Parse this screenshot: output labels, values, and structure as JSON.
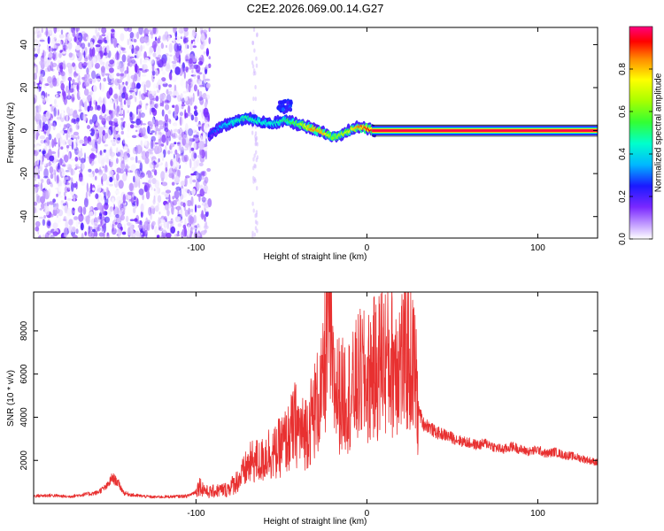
{
  "figure_title": "C2E2.2026.069.00.14.G27",
  "chart_data": [
    {
      "type": "heatmap",
      "title": "C2E2.2026.069.00.14.G27",
      "xlabel": "Height of straight line (km)",
      "ylabel": "Frequency (Hz)",
      "xlim": [
        -195,
        135
      ],
      "ylim": [
        -50,
        48
      ],
      "xticks": [
        -100,
        0,
        100
      ],
      "xtick_labels": [
        "-100",
        "0",
        "100"
      ],
      "yticks": [
        -40,
        -20,
        0,
        20,
        40
      ],
      "ytick_labels": [
        "-40",
        "-20",
        "0",
        "20",
        "40"
      ],
      "colorbar": {
        "label": "Normalized spectral amplitude",
        "range": [
          0,
          1
        ],
        "ticks": [
          0.0,
          0.2,
          0.4,
          0.6,
          0.8
        ],
        "tick_labels": [
          "0.0",
          "0.2",
          "0.4",
          "0.6",
          "0.8"
        ]
      },
      "regions": [
        {
          "name": "noise",
          "x_range": [
            -195,
            -92
          ],
          "freq_range": [
            -50,
            48
          ],
          "amplitude": [
            0.0,
            0.2
          ]
        },
        {
          "name": "faint-streak",
          "x_range": [
            -67,
            -64
          ],
          "freq_range": [
            -50,
            48
          ],
          "amplitude": [
            0.0,
            0.05
          ]
        },
        {
          "name": "signal-onset",
          "x_range": [
            -92,
            5
          ],
          "freq_range": [
            -4,
            10
          ],
          "amplitude": [
            0.2,
            0.9
          ]
        },
        {
          "name": "steady-tone",
          "x_range": [
            5,
            135
          ],
          "freq_center": 0,
          "amplitude": [
            0.9,
            1.0
          ]
        }
      ],
      "ridge": {
        "x": [
          -92,
          -85,
          -78,
          -70,
          -62,
          -55,
          -48,
          -40,
          -32,
          -25,
          -20,
          -15,
          -10,
          -5,
          0,
          5
        ],
        "freq": [
          -2,
          2,
          4,
          6,
          4,
          3,
          5,
          3,
          1,
          -1,
          -3,
          -2,
          0,
          2,
          1,
          0
        ],
        "amplitude": [
          0.25,
          0.35,
          0.45,
          0.5,
          0.45,
          0.45,
          0.5,
          0.6,
          0.85,
          0.8,
          0.6,
          0.65,
          0.7,
          0.85,
          0.9,
          0.95
        ]
      }
    },
    {
      "type": "line",
      "xlabel": "Height of straight line (km)",
      "ylabel": "SNR (10 * v/v)",
      "xlim": [
        -195,
        135
      ],
      "ylim": [
        0,
        9800
      ],
      "xticks": [
        -100,
        0,
        100
      ],
      "xtick_labels": [
        "-100",
        "0",
        "100"
      ],
      "yticks": [
        2000,
        4000,
        6000,
        8000
      ],
      "ytick_labels": [
        "2000",
        "4000",
        "6000",
        "8000"
      ],
      "series": [
        {
          "name": "SNR",
          "color": "#e83030",
          "x": [
            -195,
            -185,
            -175,
            -165,
            -158,
            -152,
            -149,
            -146,
            -142,
            -136,
            -125,
            -115,
            -105,
            -100,
            -98,
            -96,
            -93,
            -90,
            -86,
            -82,
            -78,
            -74,
            -70,
            -66,
            -62,
            -58,
            -54,
            -50,
            -46,
            -42,
            -38,
            -34,
            -30,
            -26,
            -23,
            -22,
            -20,
            -18,
            -15,
            -12,
            -9,
            -6,
            -3,
            0,
            3,
            6,
            9,
            12,
            15,
            18,
            21,
            24,
            26,
            28,
            30,
            33,
            36,
            40,
            45,
            50,
            55,
            60,
            65,
            70,
            75,
            80,
            85,
            90,
            95,
            100,
            105,
            110,
            115,
            120,
            125,
            130,
            135
          ],
          "y": [
            350,
            380,
            320,
            420,
            500,
            800,
            1200,
            1000,
            480,
            380,
            300,
            320,
            350,
            550,
            850,
            700,
            520,
            560,
            620,
            650,
            900,
            1200,
            1700,
            2000,
            1900,
            2400,
            2300,
            2700,
            3000,
            3700,
            3200,
            3600,
            4500,
            5100,
            8200,
            9100,
            5600,
            5300,
            4900,
            5200,
            5000,
            5600,
            6000,
            5500,
            6300,
            6100,
            7000,
            6500,
            6600,
            6800,
            6700,
            6900,
            6600,
            6200,
            4400,
            3700,
            3600,
            3300,
            3200,
            3050,
            2900,
            2800,
            2700,
            2800,
            2600,
            2500,
            2650,
            2500,
            2400,
            2500,
            2300,
            2400,
            2250,
            2200,
            2100,
            2000,
            1900
          ]
        }
      ]
    }
  ]
}
